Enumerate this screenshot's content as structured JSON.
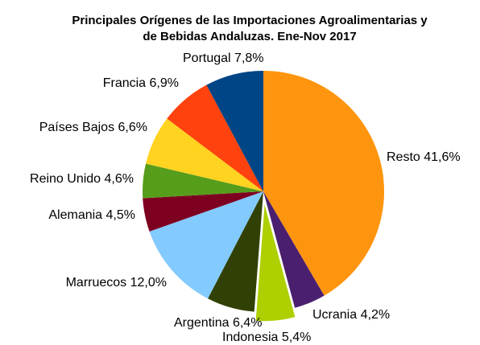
{
  "chart_data": {
    "type": "pie",
    "title": [
      "Principales Orígenes de las Importaciones Agroalimentarias y",
      "de Bebidas Andaluzas. Ene-Nov 2017"
    ],
    "categories": [
      "Resto",
      "Ucrania",
      "Indonesia",
      "Argentina",
      "Marruecos",
      "Alemania",
      "Reino Unido",
      "Países Bajos",
      "Francia",
      "Portugal"
    ],
    "values": [
      41.6,
      4.2,
      5.4,
      6.4,
      12.0,
      4.5,
      4.6,
      6.6,
      6.9,
      7.8
    ],
    "value_labels": [
      "41,6%",
      "4,2%",
      "5,4%",
      "6,4%",
      "12,0%",
      "4,5%",
      "4,6%",
      "6,6%",
      "6,9%",
      "7,8%"
    ],
    "colors": [
      "#ff950e",
      "#4b1f6f",
      "#aecf00",
      "#314004",
      "#83caff",
      "#7e0021",
      "#579d1c",
      "#ffd320",
      "#ff420e",
      "#004586"
    ]
  }
}
